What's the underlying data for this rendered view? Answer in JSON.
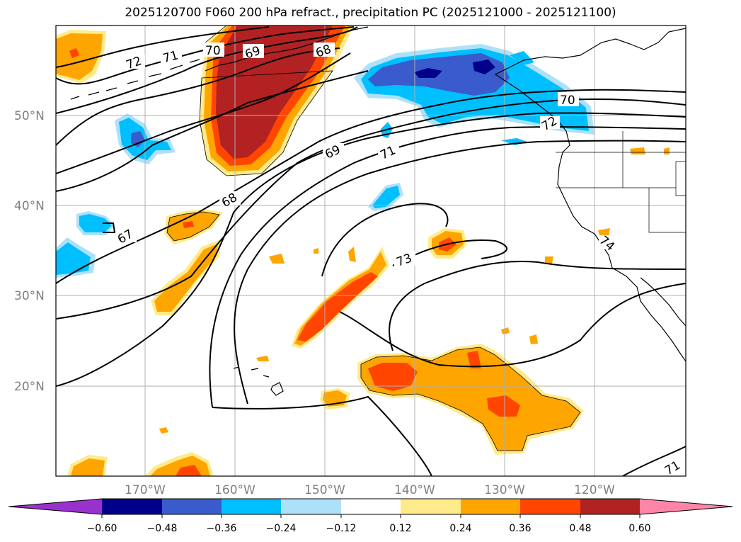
{
  "title": "2025120700 F060 200 hPa refract., precipitation PC (2025121000 - 2025121100)",
  "map": {
    "lon_labels": [
      "170°W",
      "160°W",
      "150°W",
      "140°W",
      "130°W",
      "120°W"
    ],
    "lat_labels": [
      "50°N",
      "40°N",
      "30°N",
      "20°N"
    ],
    "contour_labels": [
      "72",
      "71",
      "70",
      "69",
      "68",
      "69",
      "71",
      "68",
      "67",
      "73",
      "70",
      "72",
      "74",
      "71"
    ]
  },
  "colorbar": {
    "ticks": [
      "−0.60",
      "−0.48",
      "−0.36",
      "−0.24",
      "−0.12",
      "0.12",
      "0.24",
      "0.36",
      "0.48",
      "0.60"
    ],
    "colors": {
      "under": "#9932CC",
      "n060": "#00008B",
      "n048": "#3A5BCC",
      "n036": "#00BFFF",
      "n024": "#ADE1F9",
      "n012": "#FFFFFF",
      "p012": "#FFEB8A",
      "p024": "#FFA500",
      "p036": "#FF4500",
      "p048": "#B22222",
      "over": "#FF85A8"
    }
  }
}
